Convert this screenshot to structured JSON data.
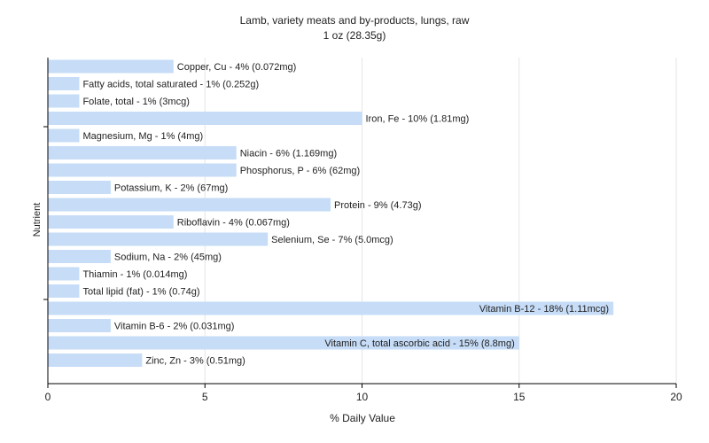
{
  "chart_data": {
    "type": "bar",
    "orientation": "horizontal",
    "title": "Lamb, variety meats and by-products, lungs, raw",
    "subtitle": "1 oz (28.35g)",
    "xlabel": "% Daily Value",
    "ylabel": "Nutrient",
    "xlim": [
      0,
      20
    ],
    "xticks": [
      0,
      5,
      10,
      15,
      20
    ],
    "grid": true,
    "bar_color": "#c6dcf7",
    "items": [
      {
        "label": "Copper, Cu - 4% (0.072mg)",
        "value": 4
      },
      {
        "label": "Fatty acids, total saturated - 1% (0.252g)",
        "value": 1
      },
      {
        "label": "Folate, total - 1% (3mcg)",
        "value": 1
      },
      {
        "label": "Iron, Fe - 10% (1.81mg)",
        "value": 10
      },
      {
        "label": "Magnesium, Mg - 1% (4mg)",
        "value": 1
      },
      {
        "label": "Niacin - 6% (1.169mg)",
        "value": 6
      },
      {
        "label": "Phosphorus, P - 6% (62mg)",
        "value": 6
      },
      {
        "label": "Potassium, K - 2% (67mg)",
        "value": 2
      },
      {
        "label": "Protein - 9% (4.73g)",
        "value": 9
      },
      {
        "label": "Riboflavin - 4% (0.067mg)",
        "value": 4
      },
      {
        "label": "Selenium, Se - 7% (5.0mcg)",
        "value": 7
      },
      {
        "label": "Sodium, Na - 2% (45mg)",
        "value": 2
      },
      {
        "label": "Thiamin - 1% (0.014mg)",
        "value": 1
      },
      {
        "label": "Total lipid (fat) - 1% (0.74g)",
        "value": 1
      },
      {
        "label": "Vitamin B-12 - 18% (1.11mcg)",
        "value": 18
      },
      {
        "label": "Vitamin B-6 - 2% (0.031mg)",
        "value": 2
      },
      {
        "label": "Vitamin C, total ascorbic acid - 15% (8.8mg)",
        "value": 15
      },
      {
        "label": "Zinc, Zn - 3% (0.51mg)",
        "value": 3
      }
    ]
  }
}
